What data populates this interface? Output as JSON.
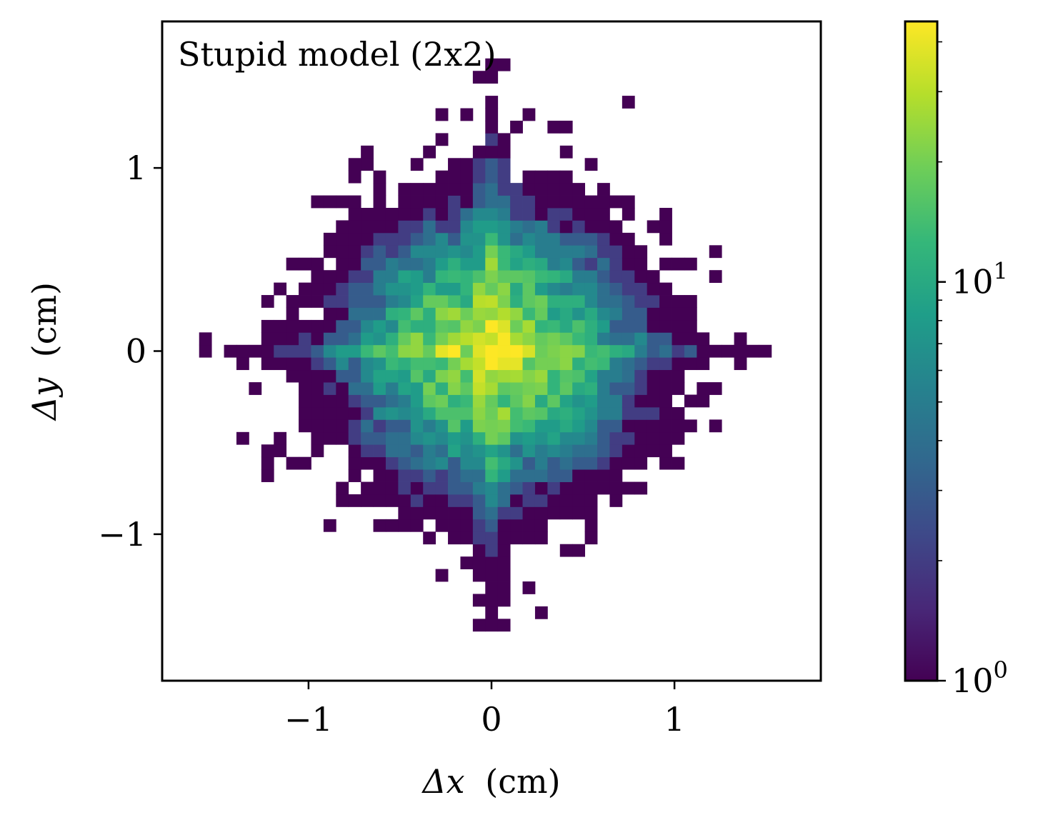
{
  "chart_data": {
    "type": "heatmap",
    "title": "Stupid model (2x2)",
    "xlabel_symbol": "Δx",
    "xlabel_unit": "(cm)",
    "ylabel_symbol": "Δy",
    "ylabel_unit": "(cm)",
    "xlim": [
      -1.8,
      1.8
    ],
    "ylim": [
      -1.8,
      1.8
    ],
    "xticks": [
      -1,
      0,
      1
    ],
    "xtick_labels": [
      "−1",
      "0",
      "1"
    ],
    "yticks": [
      -1,
      0,
      1
    ],
    "ytick_labels": [
      "−1",
      "0",
      "1"
    ],
    "bin_width_cm": 0.068,
    "colormap": "viridis",
    "color_scale": "log",
    "colorbar_range": [
      1,
      45
    ],
    "colorbar_ticks": [
      1,
      10
    ],
    "colorbar_tick_labels": [
      {
        "base": "10",
        "exp": "0"
      },
      {
        "base": "10",
        "exp": "1"
      }
    ],
    "colors": {
      "viridis": [
        "#440154",
        "#482878",
        "#3e4989",
        "#31688e",
        "#26828e",
        "#1f9e89",
        "#35b779",
        "#6ece58",
        "#b5de2b",
        "#fde725"
      ]
    },
    "distribution": {
      "peak_count": 45,
      "peak_location": [
        0,
        0
      ],
      "sigma_x": 0.38,
      "sigma_y": 0.36,
      "cross_arm_x_sigma": 0.05,
      "cross_arm_y_sigma": 0.05,
      "outer_extent": 1.6
    }
  }
}
